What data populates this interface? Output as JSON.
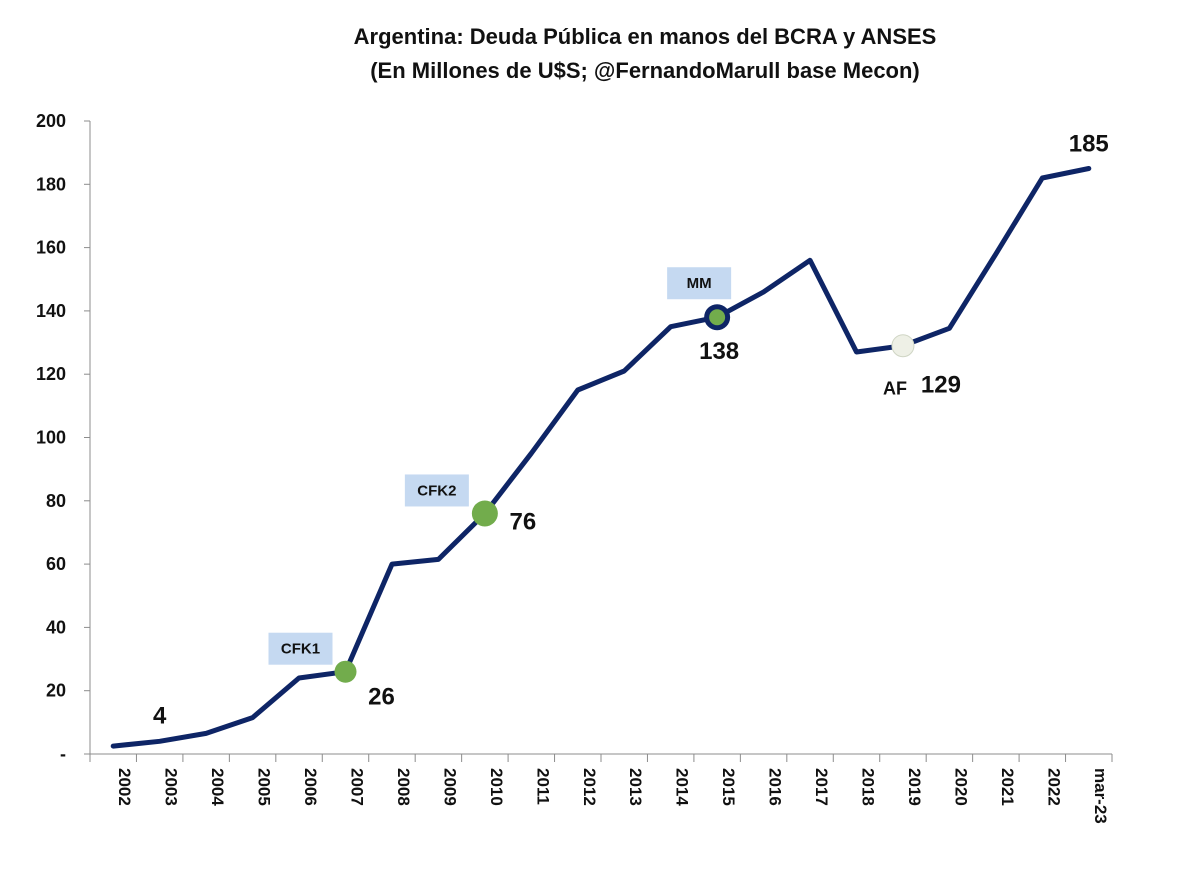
{
  "chart_data": {
    "type": "line",
    "title": "Argentina: Deuda Pública en manos del BCRA y ANSES",
    "subtitle": "(En Millones de U$S; @FernandoMarull base Mecon)",
    "xlabel": "",
    "ylabel": "",
    "categories": [
      "2002",
      "2003",
      "2004",
      "2005",
      "2006",
      "2007",
      "2008",
      "2009",
      "2010",
      "2011",
      "2012",
      "2013",
      "2014",
      "2015",
      "2016",
      "2017",
      "2018",
      "2019",
      "2020",
      "2021",
      "2022",
      "mar-23"
    ],
    "series": [
      {
        "values": [
          2.5,
          4,
          6.5,
          11.5,
          24,
          26,
          60,
          61.5,
          76,
          95,
          115,
          121,
          135,
          138,
          146,
          156,
          127,
          129,
          134.5,
          158,
          182,
          185
        ]
      }
    ],
    "ylim": [
      0,
      200
    ],
    "yticks": [
      0,
      20,
      40,
      60,
      80,
      100,
      120,
      140,
      160,
      180,
      200
    ],
    "ytick_labels": [
      "-",
      "20",
      "40",
      "60",
      "80",
      "100",
      "120",
      "140",
      "160",
      "180",
      "200"
    ],
    "line_color": "#0e2566",
    "data_labels": [
      {
        "index": 1,
        "text": "4"
      },
      {
        "index": 5,
        "text": "26"
      },
      {
        "index": 8,
        "text": "76"
      },
      {
        "index": 13,
        "text": "138"
      },
      {
        "index": 17,
        "text": "129"
      },
      {
        "index": 21,
        "text": "185"
      }
    ],
    "markers": [
      {
        "index": 5,
        "color": "#72ac4c",
        "label": "CFK1"
      },
      {
        "index": 8,
        "color": "#72ac4c",
        "label": "CFK2"
      },
      {
        "index": 13,
        "color": "#72ac4c",
        "label": "MM"
      },
      {
        "index": 17,
        "color": "#eef0e6",
        "label": "AF"
      }
    ],
    "label_box_color": "#c5d9f1"
  }
}
